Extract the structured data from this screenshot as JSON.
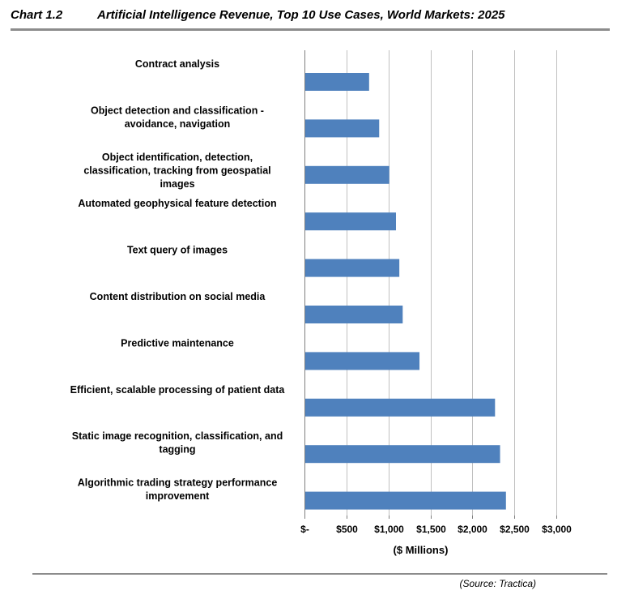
{
  "header": {
    "chart_number": "Chart 1.2",
    "title": "Artificial Intelligence Revenue, Top 10 Use Cases, World Markets: 2025"
  },
  "footer": {
    "source": "(Source: Tractica)"
  },
  "colors": {
    "bar": "#4f81bd",
    "gridline": "#c0c0c0",
    "rule": "#8c8c8c"
  },
  "chart_data": {
    "type": "bar",
    "orientation": "horizontal",
    "title": "Artificial Intelligence Revenue, Top 10 Use Cases, World Markets: 2025",
    "xlabel": "($ Millions)",
    "ylabel": "",
    "xlim": [
      0,
      3000
    ],
    "grid": true,
    "legend": "none",
    "x_ticks": [
      0,
      500,
      1000,
      1500,
      2000,
      2500,
      3000
    ],
    "x_tick_labels": [
      "$-",
      "$500",
      "$1,000",
      "$1,500",
      "$2,000",
      "$2,500",
      "$3,000"
    ],
    "categories": [
      [
        "Contract analysis"
      ],
      [
        "Object detection and classification -",
        "avoidance, navigation"
      ],
      [
        "Object identification, detection,",
        "classification, tracking from geospatial",
        "images"
      ],
      [
        "Automated geophysical feature detection"
      ],
      [
        "Text query of images"
      ],
      [
        "Content distribution on social media"
      ],
      [
        "Predictive maintenance"
      ],
      [
        "Efficient, scalable processing of patient data"
      ],
      [
        "Static image recognition, classification, and",
        "tagging"
      ],
      [
        "Algorithmic trading strategy performance",
        "improvement"
      ]
    ],
    "values": [
      770,
      890,
      1010,
      1090,
      1130,
      1170,
      1370,
      2270,
      2330,
      2400
    ]
  }
}
